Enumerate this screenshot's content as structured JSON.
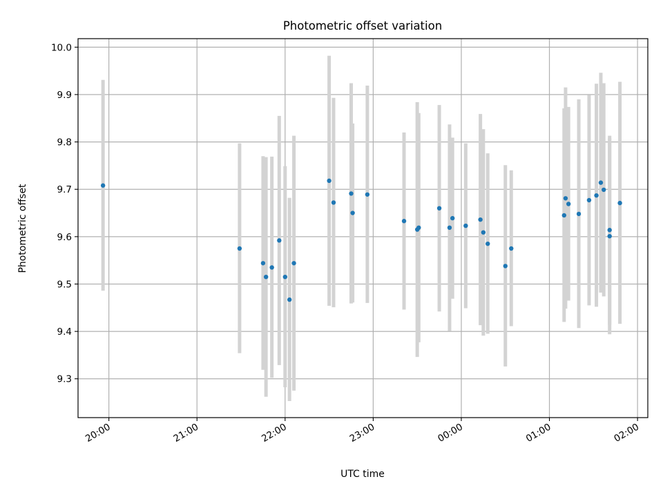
{
  "chart_data": {
    "type": "scatter",
    "title": "Photometric offset variation",
    "xlabel": "UTC time",
    "ylabel": "Photometric offset",
    "x_ticks": [
      "20:00",
      "21:00",
      "22:00",
      "23:00",
      "00:00",
      "01:00",
      "02:00"
    ],
    "y_ticks": [
      "9.3",
      "9.4",
      "9.5",
      "9.6",
      "9.7",
      "9.8",
      "9.9",
      "10.0"
    ],
    "x_range_minutes_after_2000": [
      -21,
      367
    ],
    "ylim": [
      9.218,
      10.018
    ],
    "grid": true,
    "marker_color": "#1f77b4",
    "errorbar_color": "#d3d3d3",
    "series": [
      {
        "points": [
          {
            "t": "19:56",
            "y": 9.708,
            "lo": 9.486,
            "hi": 9.931
          },
          {
            "t": "21:29",
            "y": 9.575,
            "lo": 9.354,
            "hi": 9.797
          },
          {
            "t": "21:45",
            "y": 9.544,
            "lo": 9.319,
            "hi": 9.77
          },
          {
            "t": "21:47",
            "y": 9.515,
            "lo": 9.262,
            "hi": 9.768
          },
          {
            "t": "21:51",
            "y": 9.535,
            "lo": 9.302,
            "hi": 9.769
          },
          {
            "t": "21:56",
            "y": 9.592,
            "lo": 9.329,
            "hi": 9.855
          },
          {
            "t": "22:00",
            "y": 9.515,
            "lo": 9.282,
            "hi": 9.749
          },
          {
            "t": "22:03",
            "y": 9.467,
            "lo": 9.253,
            "hi": 9.682
          },
          {
            "t": "22:06",
            "y": 9.544,
            "lo": 9.275,
            "hi": 9.813
          },
          {
            "t": "22:30",
            "y": 9.718,
            "lo": 9.454,
            "hi": 9.982
          },
          {
            "t": "22:33",
            "y": 9.672,
            "lo": 9.451,
            "hi": 9.893
          },
          {
            "t": "22:45",
            "y": 9.691,
            "lo": 9.459,
            "hi": 9.924
          },
          {
            "t": "22:46",
            "y": 9.65,
            "lo": 9.461,
            "hi": 9.839
          },
          {
            "t": "22:56",
            "y": 9.689,
            "lo": 9.46,
            "hi": 9.919
          },
          {
            "t": "23:21",
            "y": 9.633,
            "lo": 9.446,
            "hi": 9.82
          },
          {
            "t": "23:30",
            "y": 9.615,
            "lo": 9.346,
            "hi": 9.884
          },
          {
            "t": "23:31",
            "y": 9.619,
            "lo": 9.377,
            "hi": 9.861
          },
          {
            "t": "23:45",
            "y": 9.66,
            "lo": 9.442,
            "hi": 9.878
          },
          {
            "t": "23:52",
            "y": 9.619,
            "lo": 9.401,
            "hi": 9.837
          },
          {
            "t": "23:54",
            "y": 9.639,
            "lo": 9.469,
            "hi": 9.809
          },
          {
            "t": "00:03",
            "y": 9.623,
            "lo": 9.449,
            "hi": 9.797
          },
          {
            "t": "00:13",
            "y": 9.636,
            "lo": 9.413,
            "hi": 9.859
          },
          {
            "t": "00:15",
            "y": 9.609,
            "lo": 9.391,
            "hi": 9.827
          },
          {
            "t": "00:18",
            "y": 9.585,
            "lo": 9.395,
            "hi": 9.776
          },
          {
            "t": "00:30",
            "y": 9.538,
            "lo": 9.326,
            "hi": 9.751
          },
          {
            "t": "00:34",
            "y": 9.575,
            "lo": 9.411,
            "hi": 9.74
          },
          {
            "t": "01:10",
            "y": 9.645,
            "lo": 9.42,
            "hi": 9.871
          },
          {
            "t": "01:11",
            "y": 9.681,
            "lo": 9.448,
            "hi": 9.915
          },
          {
            "t": "01:13",
            "y": 9.669,
            "lo": 9.465,
            "hi": 9.874
          },
          {
            "t": "01:20",
            "y": 9.648,
            "lo": 9.407,
            "hi": 9.89
          },
          {
            "t": "01:27",
            "y": 9.677,
            "lo": 9.455,
            "hi": 9.899
          },
          {
            "t": "01:32",
            "y": 9.687,
            "lo": 9.452,
            "hi": 9.923
          },
          {
            "t": "01:35",
            "y": 9.714,
            "lo": 9.482,
            "hi": 9.946
          },
          {
            "t": "01:37",
            "y": 9.699,
            "lo": 9.474,
            "hi": 9.924
          },
          {
            "t": "01:41",
            "y": 9.614,
            "lo": 9.414,
            "hi": 9.813
          },
          {
            "t": "01:41",
            "y": 9.601,
            "lo": 9.394,
            "hi": 9.808
          },
          {
            "t": "01:48",
            "y": 9.671,
            "lo": 9.416,
            "hi": 9.927
          }
        ]
      }
    ]
  }
}
